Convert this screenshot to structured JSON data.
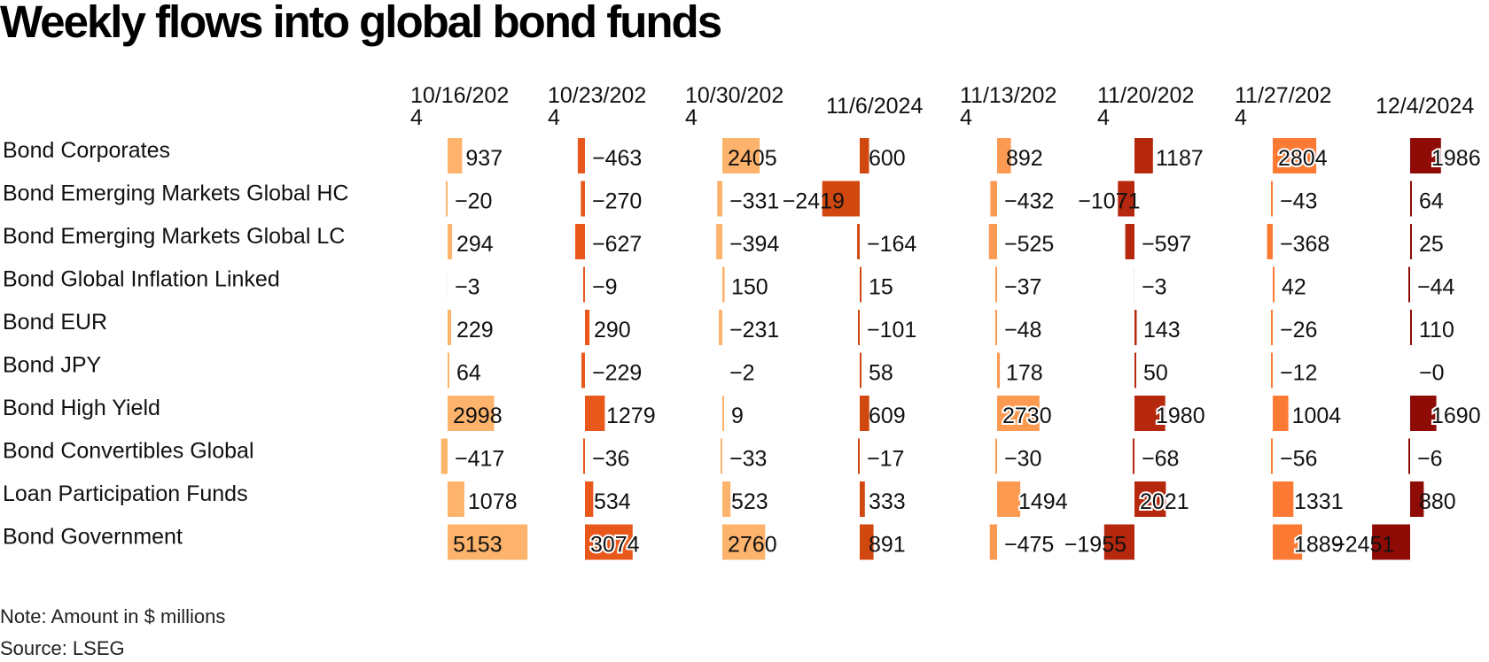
{
  "chart_data": {
    "type": "table",
    "title": "Weekly flows into global bond funds",
    "note": "Note: Amount in $ millions",
    "source": "Source: LSEG",
    "columns": [
      {
        "l1": "10/16/202",
        "l2": "4",
        "color": "#fdb36b"
      },
      {
        "l1": "10/23/202",
        "l2": "4",
        "color": "#e8581b"
      },
      {
        "l1": "10/30/202",
        "l2": "4",
        "color": "#fdb36b"
      },
      {
        "l1": "11/6/2024",
        "l2": "",
        "color": "#d0480f"
      },
      {
        "l1": "11/13/202",
        "l2": "4",
        "color": "#fd9a52"
      },
      {
        "l1": "11/20/202",
        "l2": "4",
        "color": "#b5280e"
      },
      {
        "l1": "11/27/202",
        "l2": "4",
        "color": "#fc7a34"
      },
      {
        "l1": "12/4/2024",
        "l2": "",
        "color": "#8f0b05"
      }
    ],
    "rows": [
      {
        "name": "Bond Corporates",
        "values": [
          "937",
          "−463",
          "2405",
          "600",
          "892",
          "1187",
          "2804",
          "1986"
        ]
      },
      {
        "name": "Bond Emerging Markets Global HC",
        "values": [
          "−20",
          "−270",
          "−331",
          "−2419",
          "−432",
          "−1071",
          "−43",
          "64"
        ]
      },
      {
        "name": "Bond Emerging Markets Global LC",
        "values": [
          "294",
          "−627",
          "−394",
          "−164",
          "−525",
          "−597",
          "−368",
          "25"
        ]
      },
      {
        "name": "Bond Global Inflation Linked",
        "values": [
          "−3",
          "−9",
          "150",
          "15",
          "−37",
          "−3",
          "42",
          "−44"
        ]
      },
      {
        "name": "Bond EUR",
        "values": [
          "229",
          "290",
          "−231",
          "−101",
          "−48",
          "143",
          "−26",
          "110"
        ]
      },
      {
        "name": "Bond JPY",
        "values": [
          "64",
          "−229",
          "−2",
          "58",
          "178",
          "50",
          "−12",
          "−0"
        ]
      },
      {
        "name": "Bond High Yield",
        "values": [
          "2998",
          "1279",
          "9",
          "609",
          "2730",
          "1980",
          "1004",
          "1690"
        ]
      },
      {
        "name": "Bond Convertibles Global",
        "values": [
          "−417",
          "−36",
          "−33",
          "−17",
          "−30",
          "−68",
          "−56",
          "−6"
        ]
      },
      {
        "name": "Loan Participation Funds",
        "values": [
          "1078",
          "534",
          "523",
          "333",
          "1494",
          "2021",
          "1331",
          "880"
        ]
      },
      {
        "name": "Bond Government",
        "values": [
          "5153",
          "3074",
          "2760",
          "891",
          "−475",
          "−1955",
          "1889",
          "−2451"
        ]
      }
    ]
  }
}
